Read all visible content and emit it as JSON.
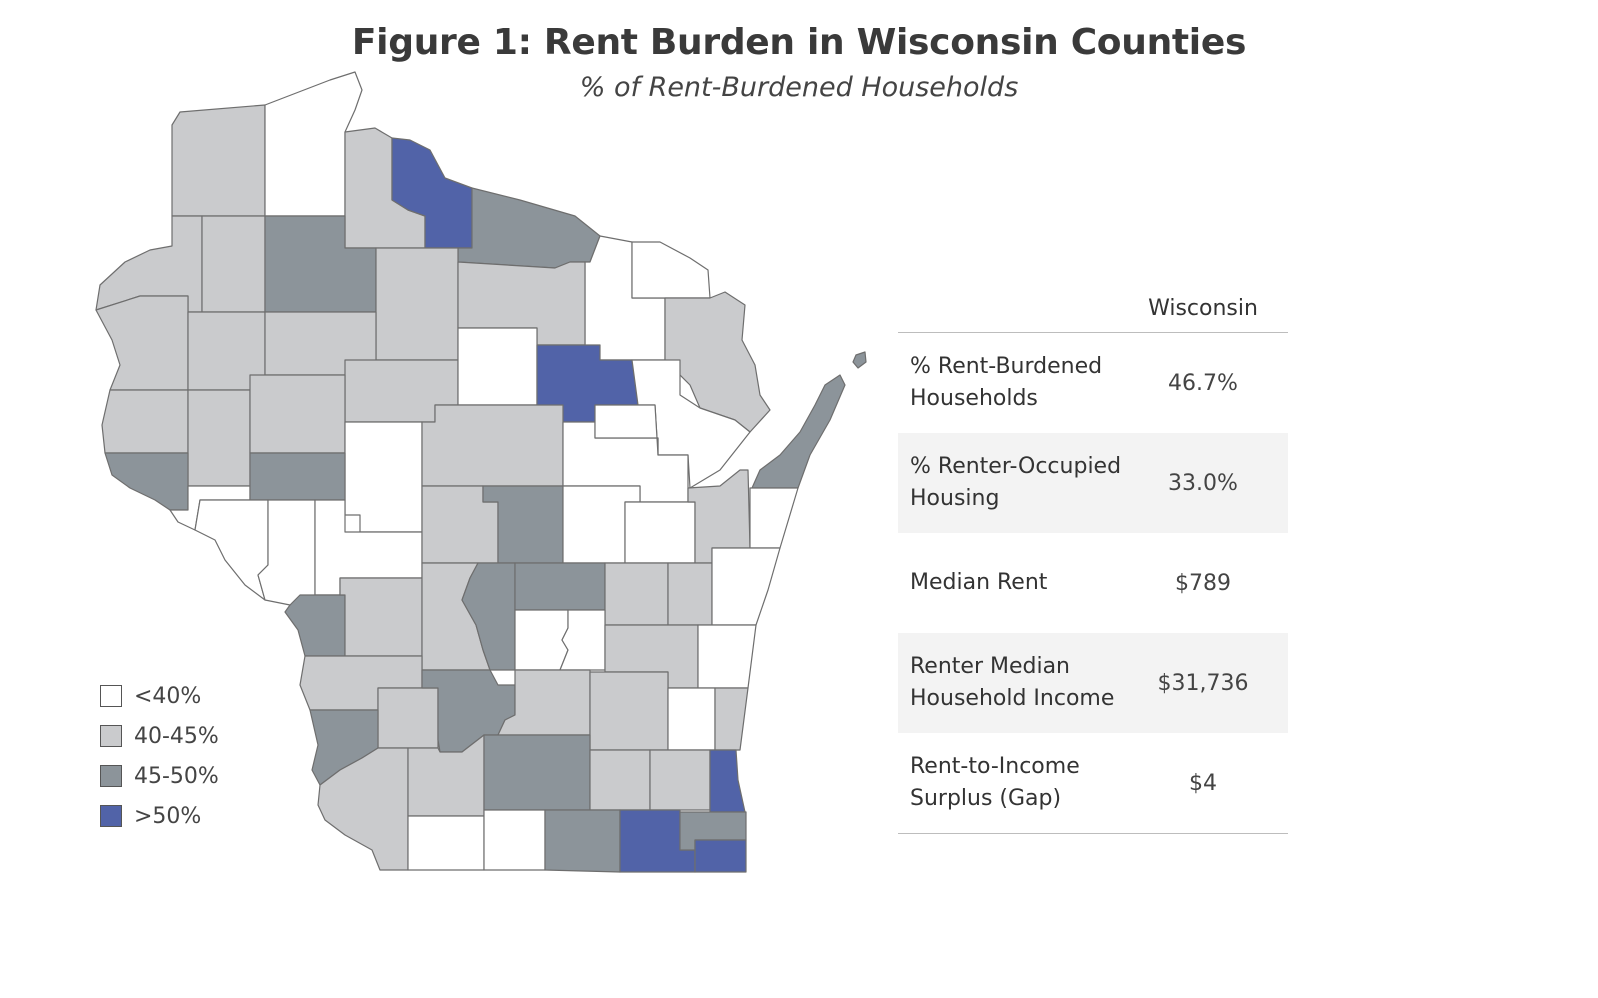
{
  "title": "Figure 1: Rent Burden in Wisconsin Counties",
  "subtitle": "% of Rent-Burdened Households",
  "colors": {
    "under_40": "#ffffff",
    "40_45": "#cacbcd",
    "45_50": "#8c949a",
    "over_50": "#5163a8",
    "border": "#6e6e6e"
  },
  "legend": [
    {
      "label": "<40%",
      "color": "#ffffff"
    },
    {
      "label": "40-45%",
      "color": "#cacbcd"
    },
    {
      "label": "45-50%",
      "color": "#8c949a"
    },
    {
      "label": ">50%",
      "color": "#5163a8"
    }
  ],
  "table": {
    "column_header": "Wisconsin",
    "rows": [
      {
        "label": "% Rent-Burdened\nHouseholds",
        "value": "46.7%"
      },
      {
        "label": "% Renter-Occupied\nHousing",
        "value": "33.0%"
      },
      {
        "label": "Median Rent",
        "value": "$789"
      },
      {
        "label": "Renter Median\nHousehold Income",
        "value": "$31,736"
      },
      {
        "label": "Rent-to-Income\nSurplus (Gap)",
        "value": "$4"
      }
    ]
  }
}
